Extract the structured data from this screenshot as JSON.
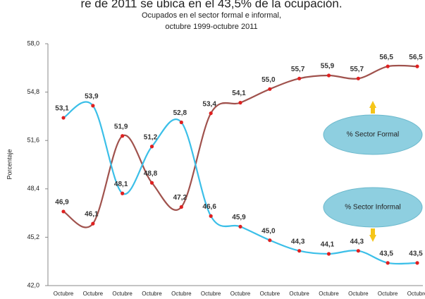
{
  "context_text": "re de 2011 se ubica en el 43,5% de la ocupación.",
  "chart_data": {
    "type": "line",
    "title": "Ocupados en el sector formal e informal,",
    "subtitle": "octubre 1999-octubre 2011",
    "y_label": "Porcentaje",
    "categories": [
      "Octubre",
      "Octubre",
      "Octubre",
      "Octubre",
      "Octubre",
      "Octubre",
      "Octubre",
      "Octubre",
      "Octubre",
      "Octubre",
      "Octubre",
      "Octubre",
      "Octubre"
    ],
    "series": [
      {
        "name": "% Sector Formal",
        "color": "#a0524d",
        "values": [
          46.9,
          46.1,
          51.9,
          48.8,
          47.2,
          53.4,
          54.1,
          55.0,
          55.7,
          55.9,
          55.7,
          56.5,
          56.5
        ],
        "value_labels": [
          "46,9",
          "46,1",
          "51,9",
          "48,8",
          "47,2",
          "53,4",
          "54,1",
          "55,0",
          "55,7",
          "55,9",
          "55,7",
          "56,5",
          "56,5"
        ]
      },
      {
        "name": "% Sector Informal",
        "color": "#3bbfe8",
        "values": [
          53.1,
          53.9,
          48.1,
          51.2,
          52.8,
          46.6,
          45.9,
          45.0,
          44.3,
          44.1,
          44.3,
          43.5,
          43.5
        ],
        "value_labels": [
          "53,1",
          "53,9",
          "48,1",
          "51,2",
          "52,8",
          "46,6",
          "45,9",
          "45,0",
          "44,3",
          "44,1",
          "44,3",
          "43,5",
          "43,5"
        ]
      }
    ],
    "marker_color": "#e02020",
    "ylim": [
      42,
      58
    ],
    "yticks": [
      {
        "value": 42,
        "label": "42,0"
      },
      {
        "value": 45.2,
        "label": "45,2"
      },
      {
        "value": 48.4,
        "label": "48,4"
      },
      {
        "value": 51.6,
        "label": "51,6"
      },
      {
        "value": 54.8,
        "label": "54,8"
      },
      {
        "value": 58,
        "label": "58,0"
      }
    ]
  }
}
